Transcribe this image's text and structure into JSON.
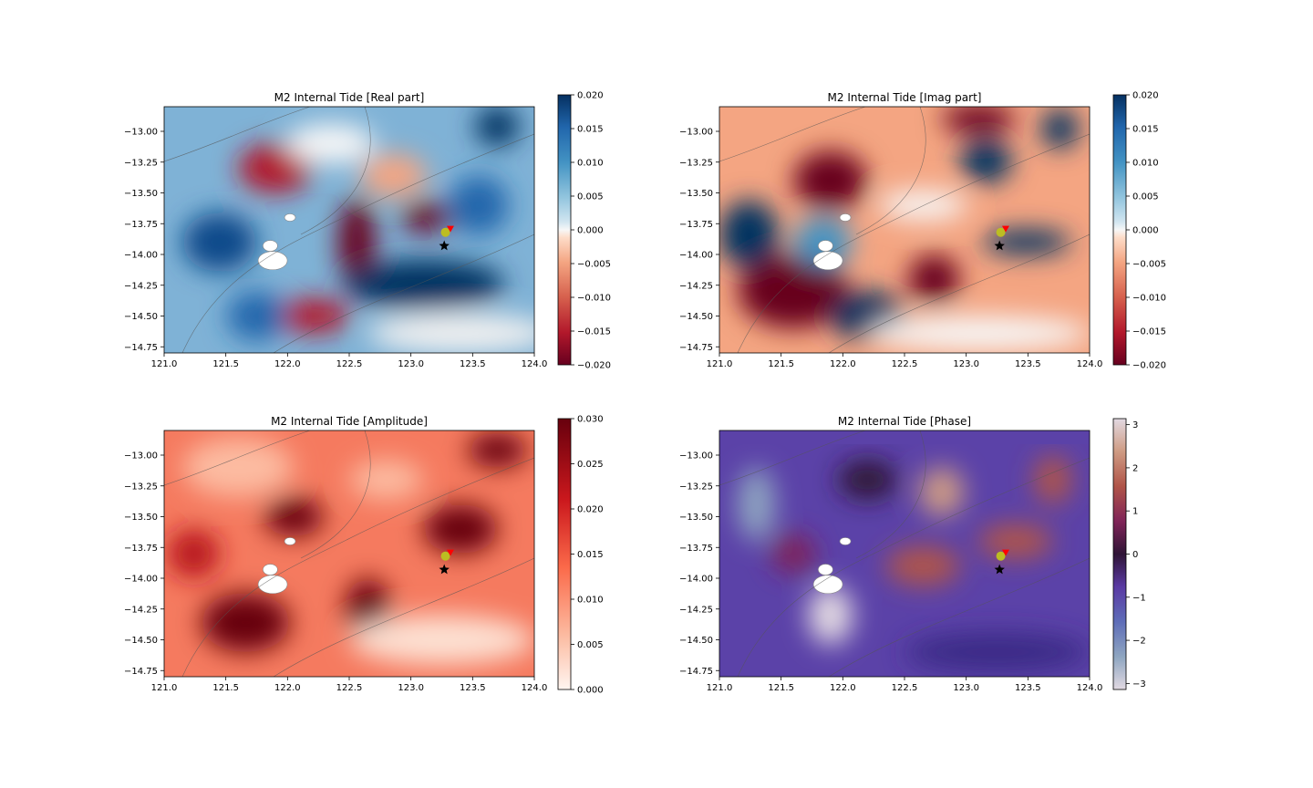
{
  "chart_data": [
    {
      "type": "heatmap",
      "title": "M2 Internal Tide [Real part]",
      "xlim": [
        121.0,
        124.0
      ],
      "ylim": [
        -14.8,
        -12.8
      ],
      "x_ticks": [
        "121.0",
        "121.5",
        "122.0",
        "122.5",
        "123.0",
        "123.5",
        "124.0"
      ],
      "y_ticks": [
        "-13.00",
        "-13.25",
        "-13.50",
        "-13.75",
        "-14.00",
        "-14.25",
        "-14.50",
        "-14.75"
      ],
      "colormap": "RdBu",
      "colorbar": {
        "range": [
          -0.02,
          0.02
        ],
        "ticks": [
          "0.020",
          "0.015",
          "0.010",
          "0.005",
          "0.000",
          "-0.005",
          "-0.010",
          "-0.015",
          "-0.020"
        ]
      },
      "markers": [
        {
          "name": "star",
          "x": 123.27,
          "y": -13.93,
          "color": "#000000"
        },
        {
          "name": "circle",
          "x": 123.28,
          "y": -13.82,
          "color": "#bcbd22"
        },
        {
          "name": "triangle",
          "x": 123.32,
          "y": -13.79,
          "color": "#ff0000"
        }
      ]
    },
    {
      "type": "heatmap",
      "title": "M2 Internal Tide [Imag part]",
      "xlim": [
        121.0,
        124.0
      ],
      "ylim": [
        -14.8,
        -12.8
      ],
      "x_ticks": [
        "121.0",
        "121.5",
        "122.0",
        "122.5",
        "123.0",
        "123.5",
        "124.0"
      ],
      "y_ticks": [
        "-13.00",
        "-13.25",
        "-13.50",
        "-13.75",
        "-14.00",
        "-14.25",
        "-14.50",
        "-14.75"
      ],
      "colormap": "RdBu",
      "colorbar": {
        "range": [
          -0.02,
          0.02
        ],
        "ticks": [
          "0.020",
          "0.015",
          "0.010",
          "0.005",
          "0.000",
          "-0.005",
          "-0.010",
          "-0.015",
          "-0.020"
        ]
      },
      "markers": [
        {
          "name": "star",
          "x": 123.27,
          "y": -13.93,
          "color": "#000000"
        },
        {
          "name": "circle",
          "x": 123.28,
          "y": -13.82,
          "color": "#bcbd22"
        },
        {
          "name": "triangle",
          "x": 123.32,
          "y": -13.79,
          "color": "#ff0000"
        }
      ]
    },
    {
      "type": "heatmap",
      "title": "M2 Internal Tide [Amplitude]",
      "xlim": [
        121.0,
        124.0
      ],
      "ylim": [
        -14.8,
        -12.8
      ],
      "x_ticks": [
        "121.0",
        "121.5",
        "122.0",
        "122.5",
        "123.0",
        "123.5",
        "124.0"
      ],
      "y_ticks": [
        "-13.00",
        "-13.25",
        "-13.50",
        "-13.75",
        "-14.00",
        "-14.25",
        "-14.50",
        "-14.75"
      ],
      "colormap": "Reds",
      "colorbar": {
        "range": [
          0.0,
          0.03
        ],
        "ticks": [
          "0.030",
          "0.025",
          "0.020",
          "0.015",
          "0.010",
          "0.005",
          "0.000"
        ]
      },
      "markers": [
        {
          "name": "star",
          "x": 123.27,
          "y": -13.93,
          "color": "#000000"
        },
        {
          "name": "circle",
          "x": 123.28,
          "y": -13.82,
          "color": "#bcbd22"
        },
        {
          "name": "triangle",
          "x": 123.32,
          "y": -13.79,
          "color": "#ff0000"
        }
      ]
    },
    {
      "type": "heatmap",
      "title": "M2 Internal Tide [Phase]",
      "xlim": [
        121.0,
        124.0
      ],
      "ylim": [
        -14.8,
        -12.8
      ],
      "x_ticks": [
        "121.0",
        "121.5",
        "122.0",
        "122.5",
        "123.0",
        "123.5",
        "124.0"
      ],
      "y_ticks": [
        "-13.00",
        "-13.25",
        "-13.50",
        "-13.75",
        "-14.00",
        "-14.25",
        "-14.50",
        "-14.75"
      ],
      "colormap": "twilight",
      "colorbar": {
        "range": [
          -3.14,
          3.14
        ],
        "ticks": [
          "3",
          "2",
          "1",
          "0",
          "−1",
          "−2",
          "−3"
        ],
        "tick_values": [
          3,
          2,
          1,
          0,
          -1,
          -2,
          -3
        ]
      },
      "markers": [
        {
          "name": "star",
          "x": 123.27,
          "y": -13.93,
          "color": "#000000"
        },
        {
          "name": "circle",
          "x": 123.28,
          "y": -13.82,
          "color": "#bcbd22"
        },
        {
          "name": "triangle",
          "x": 123.32,
          "y": -13.79,
          "color": "#ff0000"
        }
      ]
    }
  ]
}
